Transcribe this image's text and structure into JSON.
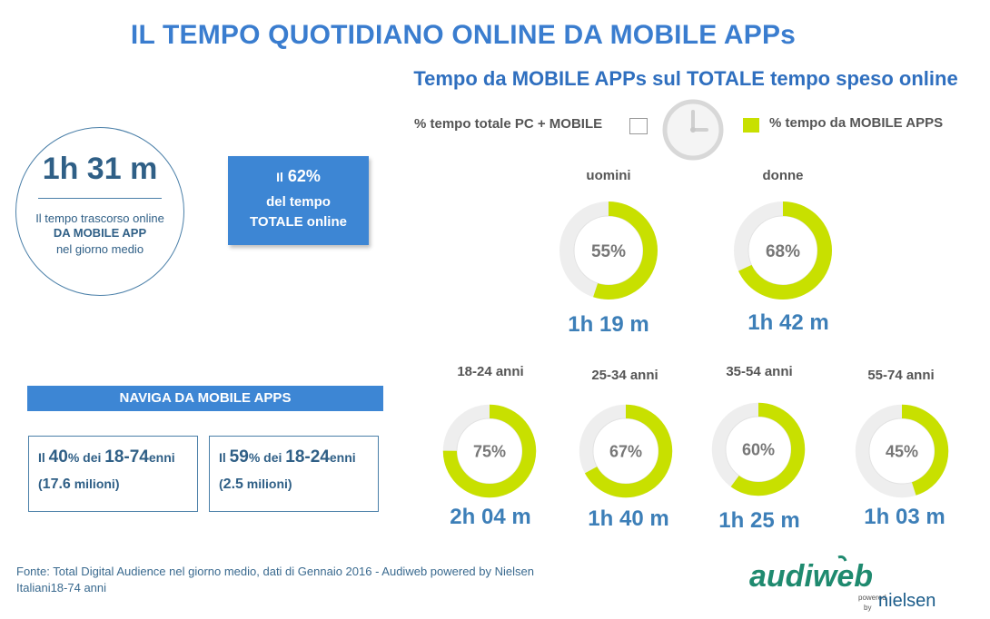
{
  "title": "IL TEMPO QUOTIDIANO ONLINE DA MOBILE APPs",
  "subtitle": "Tempo da MOBILE APPs sul TOTALE tempo speso online",
  "legend": {
    "pc_mobile": "% tempo totale PC + MOBILE",
    "mobile_apps": "% tempo da MOBILE APPS"
  },
  "colors": {
    "accent_green": "#c8e000",
    "ring_gray": "#eeeeee",
    "blue": "#3d86d4",
    "dark_blue": "#2f5f86"
  },
  "circle_panel": {
    "time": "1h 31 m",
    "desc_line1": "Il tempo trascorso online",
    "desc_line2": "DA MOBILE APP",
    "desc_line3": "nel giorno medio"
  },
  "share_box": {
    "prefix": "Il",
    "value": "62%",
    "line2": "del  tempo",
    "line3": "TOTALE online"
  },
  "naviga": {
    "header": "NAVIGA DA MOBILE APPS",
    "boxes": [
      {
        "prefix": "Il ",
        "pct": "40",
        "pct_suffix": "%",
        "middle": " dei ",
        "age": "18-74",
        "age_suffix": "enni",
        "open": "(",
        "millions": "17.6",
        "millions_suffix": " milioni)"
      },
      {
        "prefix": "Il ",
        "pct": "59",
        "pct_suffix": "%",
        "middle": " dei ",
        "age": "18-24",
        "age_suffix": "enni",
        "open": "(",
        "millions": "2.5",
        "millions_suffix": " milioni)"
      }
    ]
  },
  "chart_data": [
    {
      "type": "pie",
      "categories": [
        "uomini",
        "donne"
      ],
      "values": [
        55,
        68
      ],
      "value_labels": [
        "55%",
        "68%"
      ],
      "times": [
        "1h 19 m",
        "1h 42 m"
      ]
    },
    {
      "type": "pie",
      "categories": [
        "18-24 anni",
        "25-34 anni",
        "35-54 anni",
        "55-74 anni"
      ],
      "values": [
        75,
        67,
        60,
        45
      ],
      "value_labels": [
        "75%",
        "67%",
        "60%",
        "45%"
      ],
      "times": [
        "2h 04 m",
        "1h 40 m",
        "1h 25 m",
        "1h 03 m"
      ]
    }
  ],
  "footer": {
    "line1": "Fonte: Total Digital Audience nel giorno medio, dati di Gennaio 2016 - Audiweb powered by Nielsen",
    "line2": "Italiani18-74 anni"
  },
  "logo": {
    "audiweb": "audiweb",
    "powered": "powered",
    "by": "by",
    "nielsen": "nielsen"
  }
}
